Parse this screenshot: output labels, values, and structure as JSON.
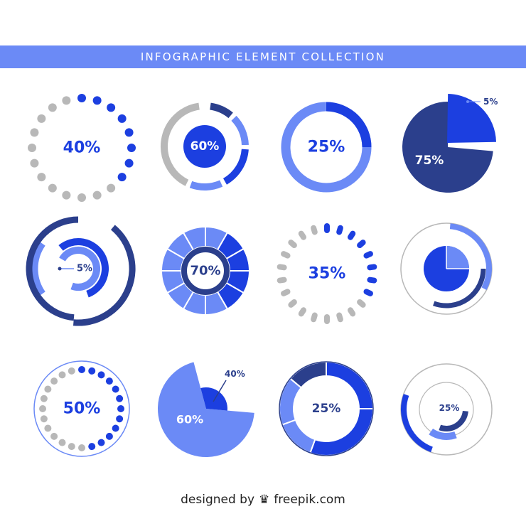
{
  "banner": {
    "title": "INFOGRAPHIC ELEMENT COLLECTION"
  },
  "colors": {
    "banner": "#6b8af6",
    "royal": "#1c3fe0",
    "light": "#6b8af6",
    "navy": "#2b3f8c",
    "gray": "#b8b8b8",
    "white": "#ffffff"
  },
  "chart_data": [
    {
      "type": "gauge-dots",
      "name": "dots-ring",
      "value": 40,
      "label": "40%"
    },
    {
      "type": "donut-segments",
      "name": "segment-ring",
      "value": 60,
      "label": "60%"
    },
    {
      "type": "ring",
      "name": "thick-ring",
      "value": 25,
      "label": "25%"
    },
    {
      "type": "pie",
      "name": "exploded-pie",
      "values": [
        5,
        75
      ],
      "labels": [
        "5%",
        "75%"
      ]
    },
    {
      "type": "concentric-arcs",
      "name": "nested-arcs",
      "value": 5,
      "label": "5%"
    },
    {
      "type": "radial-segments",
      "name": "wheel",
      "value": 70,
      "label": "70%"
    },
    {
      "type": "gauge-dots",
      "name": "dash-ring",
      "value": 35,
      "label": "35%"
    },
    {
      "type": "pie-rings",
      "name": "pie-with-rings",
      "value": 25
    },
    {
      "type": "gauge-dots",
      "name": "framed-dots",
      "value": 50,
      "label": "50%"
    },
    {
      "type": "pie",
      "name": "big-pie",
      "values": [
        40,
        60
      ],
      "labels": [
        "40%",
        "60%"
      ]
    },
    {
      "type": "donut-segments",
      "name": "segmented-donut",
      "value": 25,
      "label": "25%"
    },
    {
      "type": "concentric-arcs",
      "name": "triple-arcs",
      "value": 25,
      "label": "25%"
    }
  ],
  "footer": {
    "designed_by": "designed by",
    "brand": "freepik.com",
    "logo": "freepik-crown-icon"
  }
}
